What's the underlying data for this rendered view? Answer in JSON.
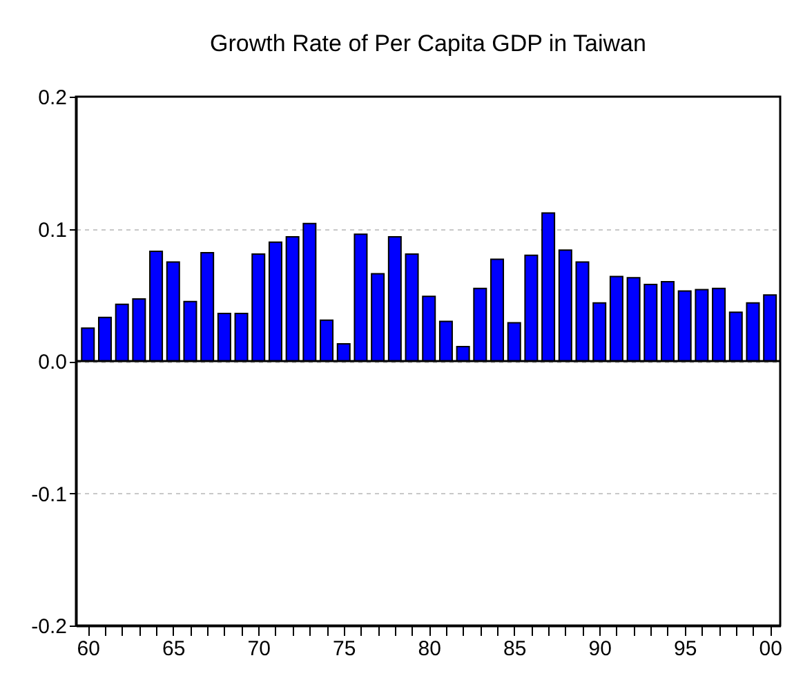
{
  "chart_data": {
    "type": "bar",
    "title": "Growth Rate of Per Capita GDP in Taiwan",
    "x": [
      1960,
      1961,
      1962,
      1963,
      1964,
      1965,
      1966,
      1967,
      1968,
      1969,
      1970,
      1971,
      1972,
      1973,
      1974,
      1975,
      1976,
      1977,
      1978,
      1979,
      1980,
      1981,
      1982,
      1983,
      1984,
      1985,
      1986,
      1987,
      1988,
      1989,
      1990,
      1991,
      1992,
      1993,
      1994,
      1995,
      1996,
      1997,
      1998,
      1999,
      2000
    ],
    "values": [
      0.025,
      0.033,
      0.043,
      0.047,
      0.083,
      0.075,
      0.045,
      0.082,
      0.036,
      0.036,
      0.081,
      0.09,
      0.094,
      0.104,
      0.031,
      0.013,
      0.096,
      0.066,
      0.094,
      0.081,
      0.049,
      0.03,
      0.011,
      0.055,
      0.077,
      0.029,
      0.08,
      0.112,
      0.084,
      0.075,
      0.044,
      0.064,
      0.063,
      0.058,
      0.06,
      0.053,
      0.054,
      0.055,
      0.037,
      0.044,
      0.05
    ],
    "color": "#0000ff",
    "xlim": [
      1959.3,
      2000.6
    ],
    "xticks": [
      {
        "value": 1960,
        "label": "60"
      },
      {
        "value": 1961,
        "label": null
      },
      {
        "value": 1962,
        "label": null
      },
      {
        "value": 1963,
        "label": null
      },
      {
        "value": 1964,
        "label": null
      },
      {
        "value": 1965,
        "label": "65"
      },
      {
        "value": 1966,
        "label": null
      },
      {
        "value": 1967,
        "label": null
      },
      {
        "value": 1968,
        "label": null
      },
      {
        "value": 1969,
        "label": null
      },
      {
        "value": 1970,
        "label": "70"
      },
      {
        "value": 1971,
        "label": null
      },
      {
        "value": 1972,
        "label": null
      },
      {
        "value": 1973,
        "label": null
      },
      {
        "value": 1974,
        "label": null
      },
      {
        "value": 1975,
        "label": "75"
      },
      {
        "value": 1976,
        "label": null
      },
      {
        "value": 1977,
        "label": null
      },
      {
        "value": 1978,
        "label": null
      },
      {
        "value": 1979,
        "label": null
      },
      {
        "value": 1980,
        "label": "80"
      },
      {
        "value": 1981,
        "label": null
      },
      {
        "value": 1982,
        "label": null
      },
      {
        "value": 1983,
        "label": null
      },
      {
        "value": 1984,
        "label": null
      },
      {
        "value": 1985,
        "label": "85"
      },
      {
        "value": 1986,
        "label": null
      },
      {
        "value": 1987,
        "label": null
      },
      {
        "value": 1988,
        "label": null
      },
      {
        "value": 1989,
        "label": null
      },
      {
        "value": 1990,
        "label": "90"
      },
      {
        "value": 1991,
        "label": null
      },
      {
        "value": 1992,
        "label": null
      },
      {
        "value": 1993,
        "label": null
      },
      {
        "value": 1994,
        "label": null
      },
      {
        "value": 1995,
        "label": "95"
      },
      {
        "value": 1996,
        "label": null
      },
      {
        "value": 1997,
        "label": null
      },
      {
        "value": 1998,
        "label": null
      },
      {
        "value": 1999,
        "label": null
      },
      {
        "value": 2000,
        "label": "00"
      }
    ],
    "ylim": [
      -0.2,
      0.2
    ],
    "yticks": [
      {
        "value": -0.2,
        "label": "-0.2"
      },
      {
        "value": -0.1,
        "label": "-0.1"
      },
      {
        "value": 0,
        "label": "0.0"
      },
      {
        "value": 0.1,
        "label": "0.1"
      },
      {
        "value": 0.2,
        "label": "0.2"
      }
    ],
    "grid": "y",
    "ref_lines": [
      {
        "axis": "y",
        "value": 0,
        "color": "#000000"
      }
    ]
  }
}
